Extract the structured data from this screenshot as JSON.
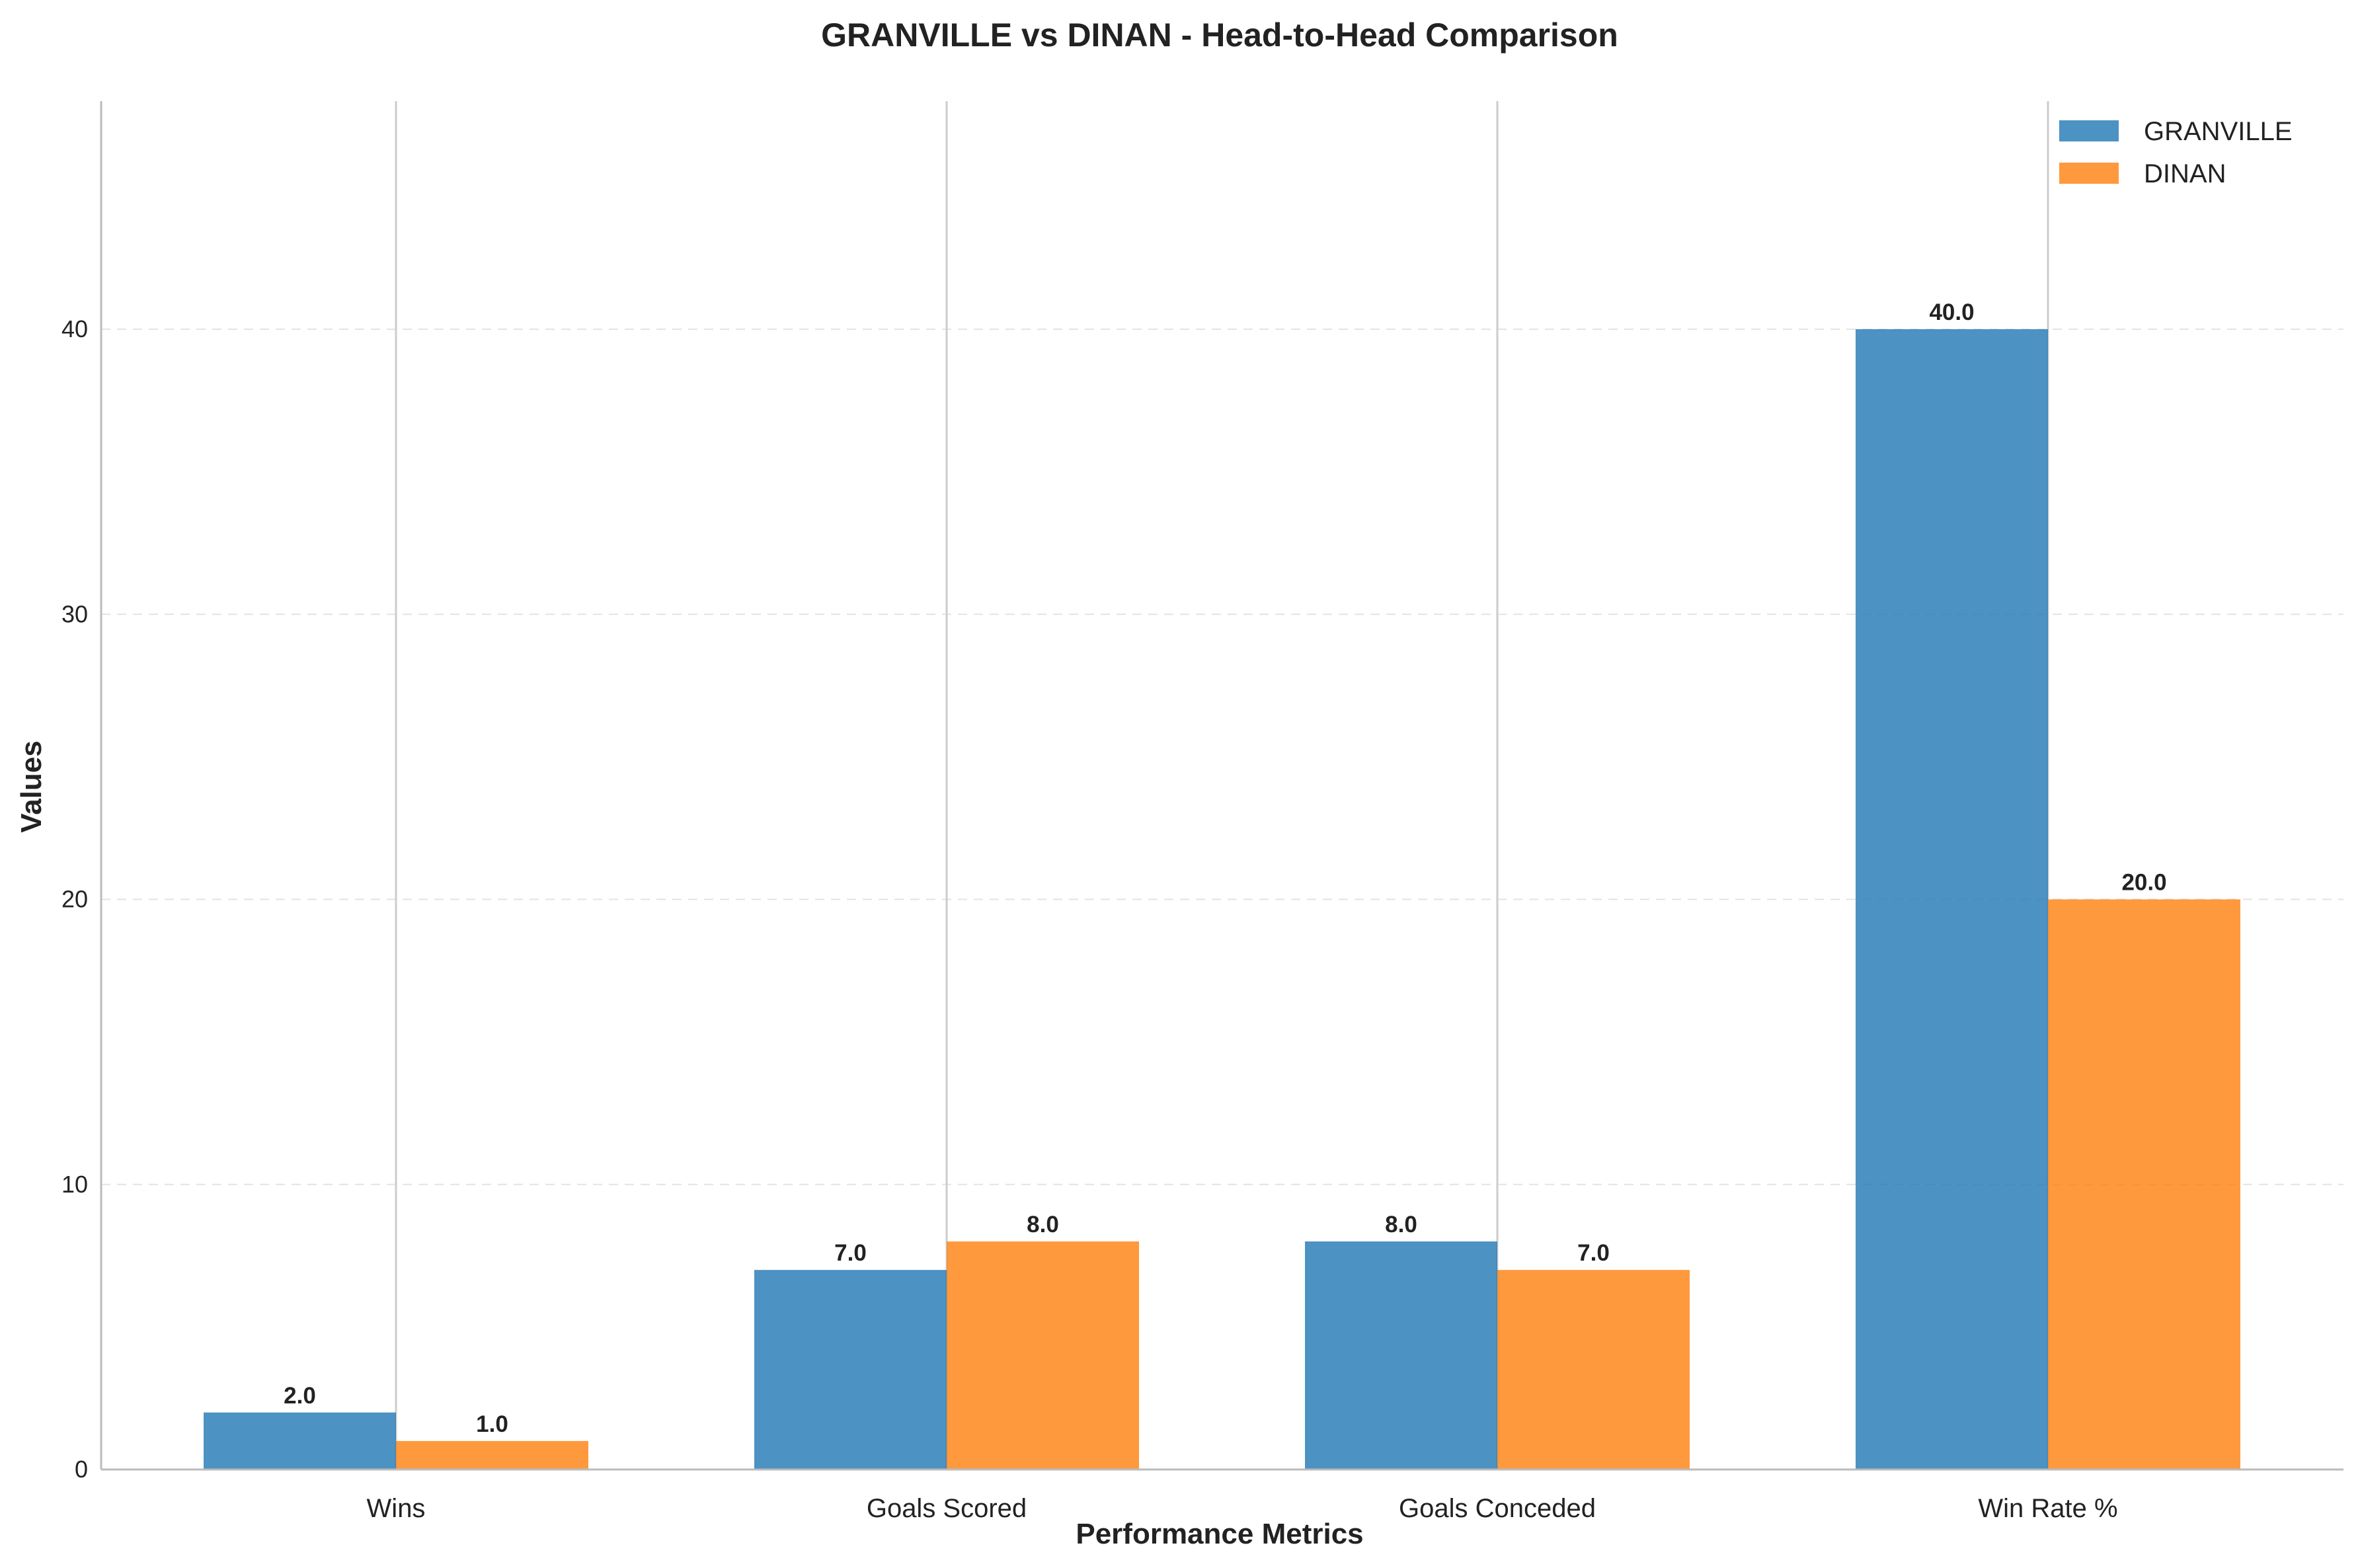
{
  "chart_data": {
    "type": "bar",
    "title": "GRANVILLE vs DINAN - Head-to-Head Comparison",
    "xlabel": "Performance Metrics",
    "ylabel": "Values",
    "categories": [
      "Wins",
      "Goals Scored",
      "Goals Conceded",
      "Win Rate %"
    ],
    "series": [
      {
        "name": "GRANVILLE",
        "color": "#1f77b4",
        "values": [
          2.0,
          7.0,
          8.0,
          40.0
        ]
      },
      {
        "name": "DINAN",
        "color": "#ff7f0e",
        "values": [
          1.0,
          8.0,
          7.0,
          20.0
        ]
      }
    ],
    "ylim": [
      0,
      48
    ],
    "yticks": [
      0,
      10,
      20,
      30,
      40
    ],
    "data_labels": [
      [
        "2.0",
        "7.0",
        "8.0",
        "40.0"
      ],
      [
        "1.0",
        "8.0",
        "7.0",
        "20.0"
      ]
    ],
    "grid": "y dashed",
    "legend": "top-right"
  }
}
